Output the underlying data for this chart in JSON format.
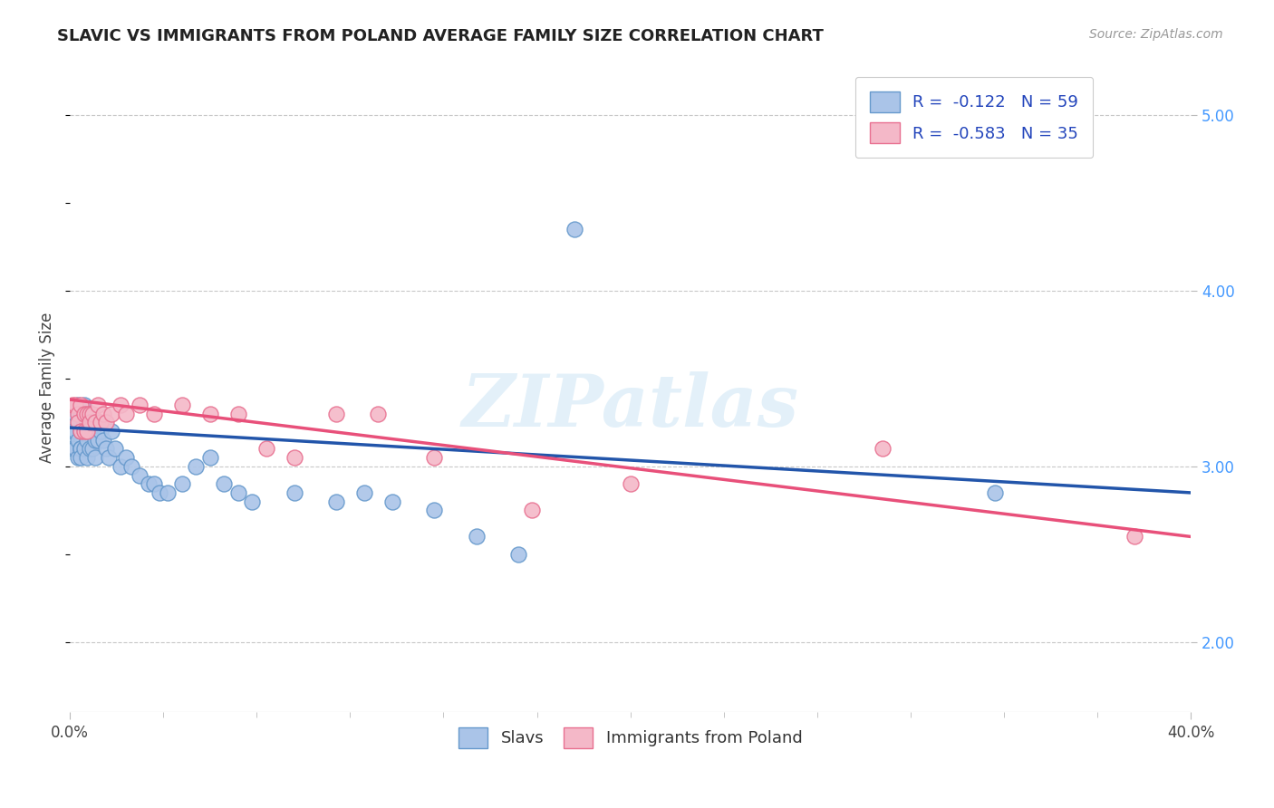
{
  "title": "SLAVIC VS IMMIGRANTS FROM POLAND AVERAGE FAMILY SIZE CORRELATION CHART",
  "source": "Source: ZipAtlas.com",
  "ylabel": "Average Family Size",
  "xlim": [
    0.0,
    0.4
  ],
  "ylim": [
    1.6,
    5.3
  ],
  "yticks": [
    2.0,
    3.0,
    4.0,
    5.0
  ],
  "xtick_labels": [
    "0.0%",
    "40.0%"
  ],
  "background_color": "#ffffff",
  "grid_color": "#c8c8c8",
  "watermark": "ZIPatlas",
  "legend_r1": "R =  -0.122   N = 59",
  "legend_r2": "R =  -0.583   N = 35",
  "slavs_color": "#aac4e8",
  "slavs_edge": "#6699cc",
  "poland_color": "#f4b8c8",
  "poland_edge": "#e87090",
  "trendline_slavs_color": "#2255aa",
  "trendline_poland_color": "#e8507a",
  "trendline_slavs_y0": 3.22,
  "trendline_slavs_y1": 2.85,
  "trendline_poland_y0": 3.38,
  "trendline_poland_y1": 2.6,
  "slavs_x": [
    0.001,
    0.001,
    0.002,
    0.002,
    0.002,
    0.003,
    0.003,
    0.003,
    0.003,
    0.004,
    0.004,
    0.004,
    0.004,
    0.004,
    0.005,
    0.005,
    0.005,
    0.005,
    0.006,
    0.006,
    0.006,
    0.007,
    0.007,
    0.007,
    0.008,
    0.008,
    0.009,
    0.009,
    0.01,
    0.01,
    0.011,
    0.012,
    0.013,
    0.014,
    0.015,
    0.016,
    0.018,
    0.02,
    0.022,
    0.025,
    0.028,
    0.03,
    0.032,
    0.035,
    0.04,
    0.045,
    0.05,
    0.055,
    0.06,
    0.065,
    0.08,
    0.095,
    0.105,
    0.115,
    0.13,
    0.145,
    0.16,
    0.18,
    0.33
  ],
  "slavs_y": [
    3.2,
    3.1,
    3.3,
    3.2,
    3.1,
    3.35,
    3.25,
    3.15,
    3.05,
    3.3,
    3.2,
    3.1,
    3.1,
    3.05,
    3.35,
    3.25,
    3.2,
    3.1,
    3.25,
    3.15,
    3.05,
    3.3,
    3.2,
    3.1,
    3.2,
    3.1,
    3.15,
    3.05,
    3.25,
    3.15,
    3.2,
    3.15,
    3.1,
    3.05,
    3.2,
    3.1,
    3.0,
    3.05,
    3.0,
    2.95,
    2.9,
    2.9,
    2.85,
    2.85,
    2.9,
    3.0,
    3.05,
    2.9,
    2.85,
    2.8,
    2.85,
    2.8,
    2.85,
    2.8,
    2.75,
    2.6,
    2.5,
    4.35,
    2.85
  ],
  "poland_x": [
    0.001,
    0.002,
    0.003,
    0.003,
    0.004,
    0.004,
    0.005,
    0.005,
    0.006,
    0.006,
    0.007,
    0.007,
    0.008,
    0.009,
    0.01,
    0.011,
    0.012,
    0.013,
    0.015,
    0.018,
    0.02,
    0.025,
    0.03,
    0.04,
    0.05,
    0.06,
    0.07,
    0.08,
    0.095,
    0.11,
    0.13,
    0.165,
    0.2,
    0.29,
    0.38
  ],
  "poland_y": [
    3.35,
    3.35,
    3.3,
    3.25,
    3.35,
    3.2,
    3.3,
    3.2,
    3.3,
    3.2,
    3.3,
    3.25,
    3.3,
    3.25,
    3.35,
    3.25,
    3.3,
    3.25,
    3.3,
    3.35,
    3.3,
    3.35,
    3.3,
    3.35,
    3.3,
    3.3,
    3.1,
    3.05,
    3.3,
    3.3,
    3.05,
    2.75,
    2.9,
    3.1,
    2.6
  ]
}
